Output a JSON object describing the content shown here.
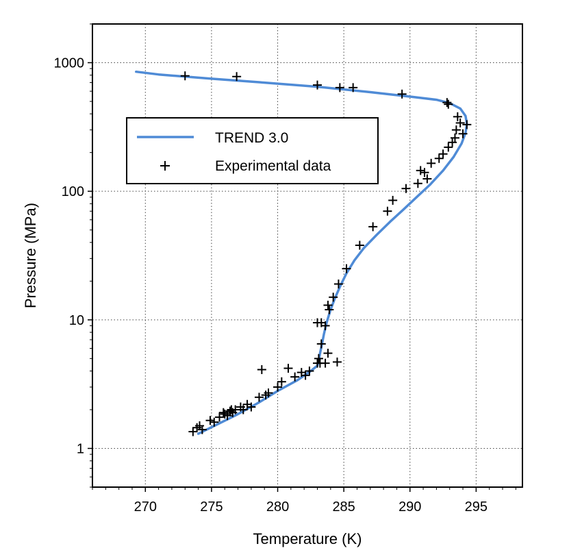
{
  "chart_data": {
    "type": "line",
    "title": "",
    "xlabel": "Temperature (K)",
    "ylabel": "Pressure (MPa)",
    "xlim": [
      266,
      298.5
    ],
    "ylim": [
      0.5,
      2000
    ],
    "yscale": "log",
    "grid": true,
    "legend_position": "upper-left",
    "xticks": [
      270,
      275,
      280,
      285,
      290,
      295
    ],
    "xtick_labels": [
      "270",
      "275",
      "280",
      "285",
      "290",
      "295"
    ],
    "yticks": [
      1,
      10,
      100,
      1000
    ],
    "ytick_labels": [
      "1",
      "10",
      "100",
      "1000"
    ],
    "legend": [
      {
        "label": "TREND 3.0",
        "kind": "line",
        "color": "#4f8bd6"
      },
      {
        "label": "Experimental data",
        "kind": "marker",
        "color": "#000000"
      }
    ],
    "series": [
      {
        "name": "TREND 3.0",
        "kind": "line",
        "color": "#4f8bd6",
        "x": [
          274.0,
          275.5,
          277.0,
          278.5,
          280.0,
          281.5,
          282.5,
          283.0,
          283.1,
          283.2,
          283.35,
          283.5,
          283.7,
          284.0,
          284.3,
          284.7,
          285.2,
          285.8,
          286.5,
          287.5,
          288.5,
          289.5,
          290.5,
          291.5,
          292.5,
          293.3,
          293.9,
          294.2,
          294.3,
          294.2,
          293.8,
          293.0,
          292.0,
          290.0,
          287.0,
          283.0,
          279.0,
          275.0,
          271.0,
          269.3
        ],
        "y": [
          1.3,
          1.55,
          1.85,
          2.25,
          2.8,
          3.4,
          4.0,
          4.4,
          4.8,
          5.5,
          6.5,
          7.8,
          9.5,
          12.0,
          14.5,
          18.0,
          23.0,
          29.0,
          36.0,
          46.0,
          58.0,
          72.0,
          90.0,
          112.0,
          145.0,
          185.0,
          235.0,
          285.0,
          335.0,
          385.0,
          440.0,
          485.0,
          515.0,
          545.0,
          590.0,
          650.0,
          700.0,
          750.0,
          810.0,
          850.0
        ]
      },
      {
        "name": "Experimental data",
        "kind": "scatter",
        "color": "#000000",
        "x": [
          273.0,
          276.9,
          283.0,
          284.7,
          285.7,
          289.4,
          292.8,
          292.9,
          293.6,
          293.8,
          293.5,
          294.3,
          294.0,
          293.2,
          292.9,
          293.4,
          292.5,
          292.2,
          291.6,
          290.8,
          291.1,
          291.3,
          290.6,
          289.7,
          288.7,
          288.3,
          287.2,
          286.2,
          285.2,
          284.6,
          284.2,
          283.8,
          283.9,
          283.6,
          283.3,
          283.0,
          283.3,
          283.8,
          283.1,
          283.0,
          283.2,
          284.5,
          283.6,
          282.4,
          281.8,
          282.1,
          281.3,
          280.8,
          280.3,
          280.0,
          279.3,
          279.1,
          278.6,
          278.0,
          278.8,
          277.7,
          277.2,
          276.8,
          276.4,
          276.0,
          276.6,
          276.2,
          275.6,
          275.2,
          274.9,
          274.1,
          273.9,
          273.6,
          274.3,
          276.5,
          277.4,
          275.9
        ],
        "y": [
          790,
          780,
          670,
          640,
          640,
          570,
          490,
          475,
          380,
          340,
          300,
          330,
          280,
          240,
          220,
          260,
          195,
          180,
          165,
          145,
          140,
          125,
          115,
          105,
          85,
          70,
          53,
          38,
          25,
          19,
          15,
          13,
          12,
          9,
          9.5,
          9.5,
          6.5,
          5.5,
          5.0,
          4.6,
          4.6,
          4.7,
          4.6,
          4.0,
          3.9,
          3.7,
          3.6,
          4.2,
          3.3,
          3.0,
          2.7,
          2.6,
          2.5,
          2.1,
          4.1,
          2.2,
          2.1,
          2.0,
          1.95,
          1.85,
          1.9,
          1.8,
          1.75,
          1.6,
          1.65,
          1.5,
          1.45,
          1.35,
          1.4,
          2.0,
          2.0,
          1.9
        ]
      }
    ]
  }
}
